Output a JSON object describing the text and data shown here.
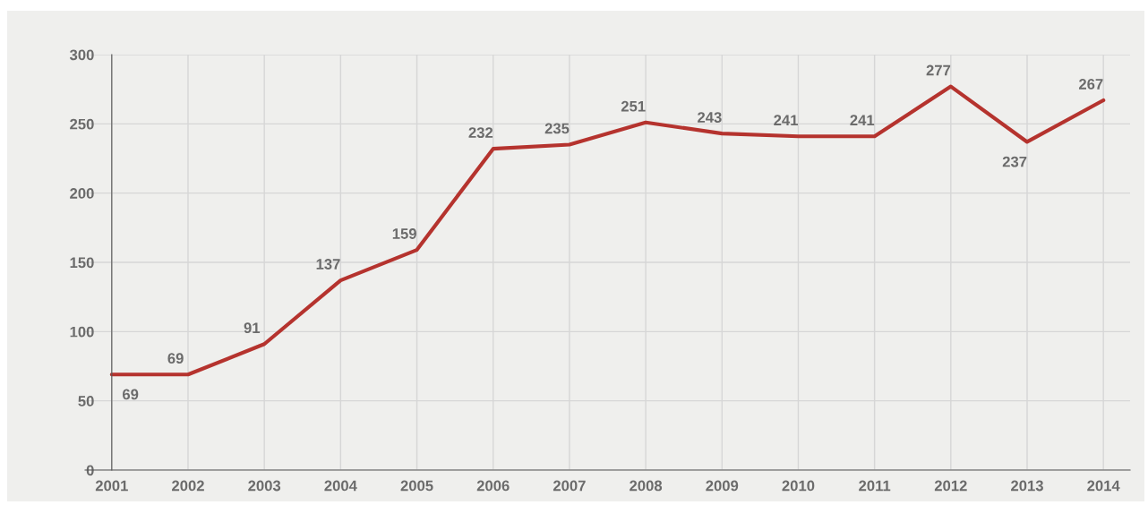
{
  "chart_data": {
    "type": "line",
    "categories": [
      "2001",
      "2002",
      "2003",
      "2004",
      "2005",
      "2006",
      "2007",
      "2008",
      "2009",
      "2010",
      "2011",
      "2012",
      "2013",
      "2014"
    ],
    "series": [
      {
        "color": "#b5332e",
        "values": [
          69,
          69,
          91,
          137,
          159,
          232,
          235,
          251,
          243,
          241,
          241,
          277,
          237,
          267
        ]
      }
    ],
    "ylim": [
      0,
      300
    ],
    "yticks": [
      0,
      50,
      100,
      150,
      200,
      250,
      300
    ],
    "grid": true,
    "data_labels": true,
    "marker": "none",
    "line_style": "solid",
    "legend": false
  }
}
